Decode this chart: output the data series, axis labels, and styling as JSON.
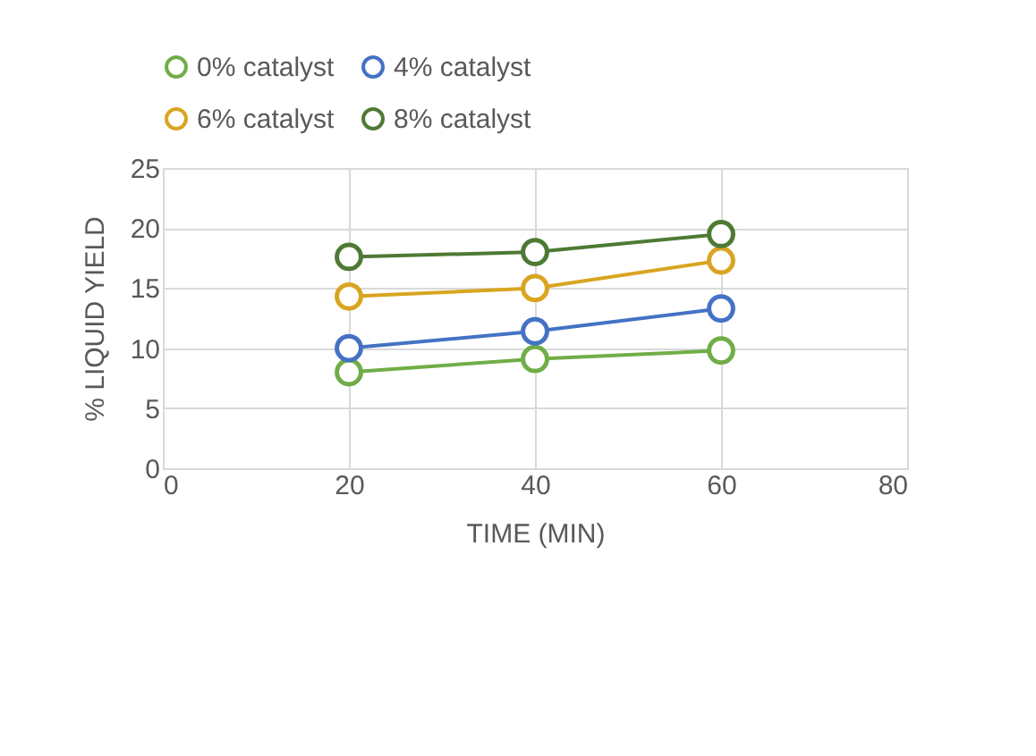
{
  "chart_data": {
    "type": "line",
    "xlabel": "TIME (MIN)",
    "ylabel": "% LIQUID YIELD",
    "x": [
      20,
      40,
      60
    ],
    "series": [
      {
        "name": "0% catalyst",
        "color": "#70ad47",
        "values": [
          8,
          9.1,
          9.8
        ]
      },
      {
        "name": "4% catalyst",
        "color": "#4472c4",
        "values": [
          10,
          11.4,
          13.3
        ]
      },
      {
        "name": "6% catalyst",
        "color": "#d9a520",
        "values": [
          14.3,
          15,
          17.3
        ]
      },
      {
        "name": "8% catalyst",
        "color": "#4e7a34",
        "values": [
          17.6,
          18,
          19.5
        ]
      }
    ],
    "xlim": [
      0,
      80
    ],
    "xticks": [
      0,
      20,
      40,
      60,
      80
    ],
    "ylim": [
      0,
      25
    ],
    "yticks": [
      0,
      5,
      10,
      15,
      20,
      25
    ],
    "grid": true,
    "legend": "top",
    "marker": "circle",
    "line_style": "solid"
  }
}
